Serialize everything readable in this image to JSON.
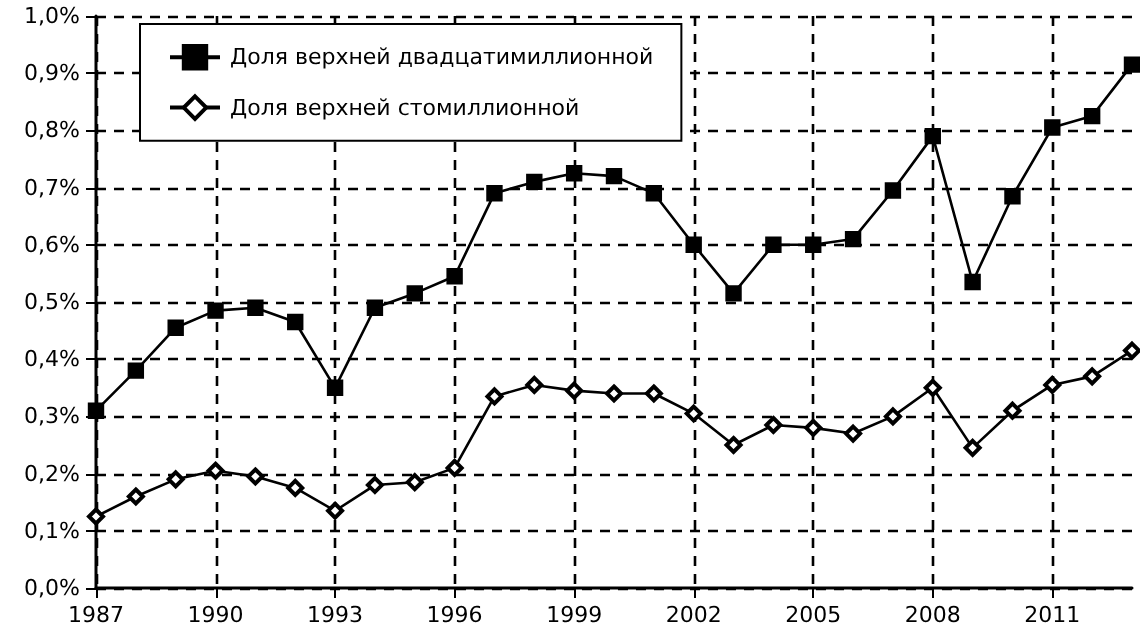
{
  "chart_data": {
    "type": "line",
    "x": [
      1987,
      1988,
      1989,
      1990,
      1991,
      1992,
      1993,
      1994,
      1995,
      1996,
      1997,
      1998,
      1999,
      2000,
      2001,
      2002,
      2003,
      2004,
      2005,
      2006,
      2007,
      2008,
      2009,
      2010,
      2011,
      2012,
      2013
    ],
    "series": [
      {
        "name": "Доля верхней двадцатимиллионной",
        "color": "#000000",
        "marker": "square",
        "values": [
          0.31,
          0.38,
          0.455,
          0.485,
          0.49,
          0.465,
          0.35,
          0.49,
          0.515,
          0.545,
          0.69,
          0.71,
          0.725,
          0.72,
          0.69,
          0.6,
          0.515,
          0.6,
          0.6,
          0.61,
          0.695,
          0.79,
          0.535,
          0.685,
          0.805,
          0.825,
          0.915
        ]
      },
      {
        "name": "Доля верхней стомиллионной",
        "color": "#000000",
        "marker": "diamond",
        "values": [
          0.125,
          0.16,
          0.19,
          0.205,
          0.195,
          0.175,
          0.135,
          0.18,
          0.185,
          0.21,
          0.335,
          0.355,
          0.345,
          0.34,
          0.34,
          0.305,
          0.25,
          0.285,
          0.28,
          0.27,
          0.3,
          0.35,
          0.245,
          0.31,
          0.355,
          0.37,
          0.415
        ]
      }
    ],
    "xlim": [
      1987,
      2013
    ],
    "xticks": [
      1987,
      1990,
      1993,
      1996,
      1999,
      2002,
      2005,
      2008,
      2011
    ],
    "ylim": [
      0,
      1
    ],
    "yticks": [
      {
        "value": 0,
        "label": "0,0%"
      },
      {
        "value": 0.1,
        "label": "0,1%"
      },
      {
        "value": 0.2,
        "label": "0,2%"
      },
      {
        "value": 0.3,
        "label": "0,3%"
      },
      {
        "value": 0.4,
        "label": "0,4%"
      },
      {
        "value": 0.5,
        "label": "0,5%"
      },
      {
        "value": 0.6,
        "label": "0,6%"
      },
      {
        "value": 0.7,
        "label": "0,7%"
      },
      {
        "value": 0.8,
        "label": "0,8%"
      },
      {
        "value": 0.9,
        "label": "0,9%"
      },
      {
        "value": 1,
        "label": "1,0%"
      }
    ],
    "grid": true,
    "legend": "top left",
    "line_style": "solid"
  }
}
